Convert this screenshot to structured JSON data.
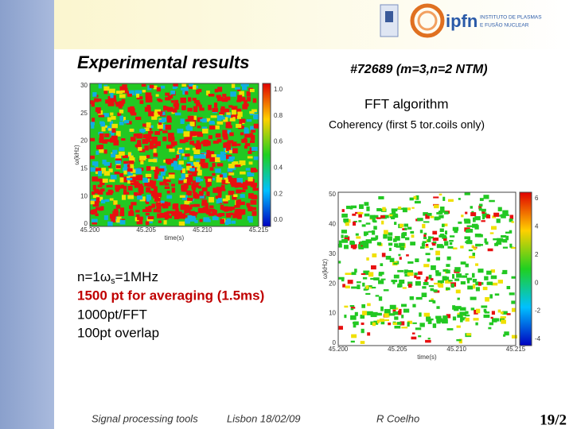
{
  "logo": {
    "acronym": "ipfn",
    "line1": "INSTITUTO DE PLASMAS",
    "line2": "E FUSÃO NUCLEAR"
  },
  "title": "Experimental results",
  "shot": "#72689  (m=3,n=2 NTM)",
  "method": "FFT algorithm",
  "subtitle": "Coherency (first 5 tor.coils only)",
  "left_plot": {
    "yticks": [
      "30",
      "25",
      "20",
      "15",
      "10",
      "0"
    ],
    "xticks": [
      "45.200",
      "45.205",
      "45.210",
      "45.215"
    ],
    "xlabel": "time(s)",
    "ylabel": "ω(kHz)",
    "colorbar": [
      "1.0",
      "0.8",
      "0.6",
      "0.4",
      "0.2",
      "0.0"
    ]
  },
  "right_plot": {
    "yticks": [
      "50",
      "40",
      "30",
      "20",
      "10",
      "0"
    ],
    "xticks": [
      "45.200",
      "45.205",
      "45.210",
      "45.215"
    ],
    "xlabel": "time(s)",
    "ylabel": "ω(kHz)",
    "colorbar": [
      "6",
      "4",
      "2",
      "0",
      "-2",
      "-4"
    ]
  },
  "notes": {
    "line1": {
      "a": "n=1",
      "omega": "ω",
      "sub": "s",
      "b": "=1MHz"
    },
    "line2": "1500 pt for averaging (1.5ms)",
    "line3": "1000pt/FFT",
    "line4": "100pt overlap"
  },
  "footer": {
    "topic": "Signal processing tools",
    "place_date": "Lisbon 18/02/09",
    "author": "R Coelho",
    "page": "19/2"
  }
}
